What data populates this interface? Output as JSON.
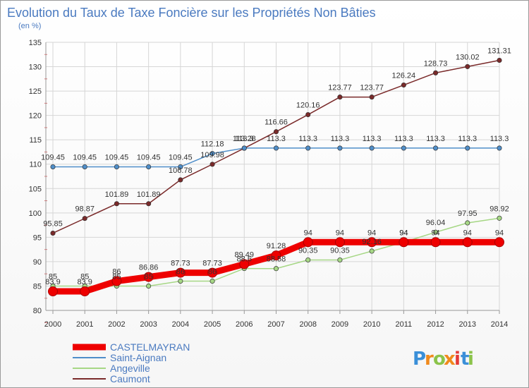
{
  "title": "Evolution du Taux de Taxe Foncière sur les Propriétés Non Bâties",
  "subtitle": "(en %)",
  "logo": "Proxiti",
  "chart_data": {
    "type": "line",
    "title": "Evolution du Taux de Taxe Foncière sur les Propriétés Non Bâties",
    "ylabel": "(en %)",
    "x": [
      "2000",
      "2001",
      "2002",
      "2003",
      "2004",
      "2005",
      "2006",
      "2007",
      "2008",
      "2009",
      "2010",
      "2011",
      "2012",
      "2013",
      "2014"
    ],
    "ylim": [
      80,
      135
    ],
    "yticks": [
      80,
      85,
      90,
      95,
      100,
      105,
      110,
      115,
      120,
      125,
      130,
      135
    ],
    "grid": true,
    "legend": "bottom-left",
    "series": [
      {
        "name": "CASTELMAYRAN",
        "color": "#ee0000",
        "values": [
          83.9,
          83.9,
          86,
          86.86,
          87.73,
          87.73,
          89.49,
          91.28,
          94,
          94,
          94,
          94,
          94,
          94,
          94
        ],
        "labels": [
          "83.9",
          "83.9",
          "86",
          "86.86",
          "87.73",
          "87.73",
          "89.49",
          "91.28",
          "94",
          "94",
          "94",
          "94",
          "94",
          "94",
          "94"
        ]
      },
      {
        "name": "Saint-Aignan",
        "color": "#4f8ec9",
        "values": [
          109.45,
          109.45,
          109.45,
          109.45,
          109.45,
          112.18,
          113.3,
          113.3,
          113.3,
          113.3,
          113.3,
          113.3,
          113.3,
          113.3,
          113.3
        ],
        "labels": [
          "109.45",
          "109.45",
          "109.45",
          "109.45",
          "109.45",
          "112.18",
          "113.3",
          "113.3",
          "113.3",
          "113.3",
          "113.3",
          "113.3",
          "113.3",
          "113.3",
          "113.3"
        ]
      },
      {
        "name": "Angeville",
        "color": "#a6d785",
        "values": [
          85,
          85,
          85,
          85,
          86,
          86,
          88.6,
          88.58,
          90.35,
          90.35,
          92.16,
          94,
          96.04,
          97.95,
          98.92
        ],
        "labels": [
          "85",
          "85",
          "85",
          "85",
          "86",
          "86",
          "88.6",
          "88.58",
          "90.35",
          "90.35",
          "92.16",
          "94",
          "96.04",
          "97.95",
          "98.92"
        ]
      },
      {
        "name": "Caumont",
        "color": "#7a2a2a",
        "values": [
          95.85,
          98.87,
          101.89,
          101.89,
          106.78,
          109.98,
          113.28,
          116.66,
          120.16,
          123.77,
          123.77,
          126.24,
          128.73,
          130.02,
          131.31
        ],
        "labels": [
          "95.85",
          "98.87",
          "101.89",
          "101.89",
          "106.78",
          "109.98",
          "113.28",
          "116.66",
          "120.16",
          "123.77",
          "123.77",
          "126.24",
          "128.73",
          "130.02",
          "131.31"
        ]
      }
    ]
  }
}
